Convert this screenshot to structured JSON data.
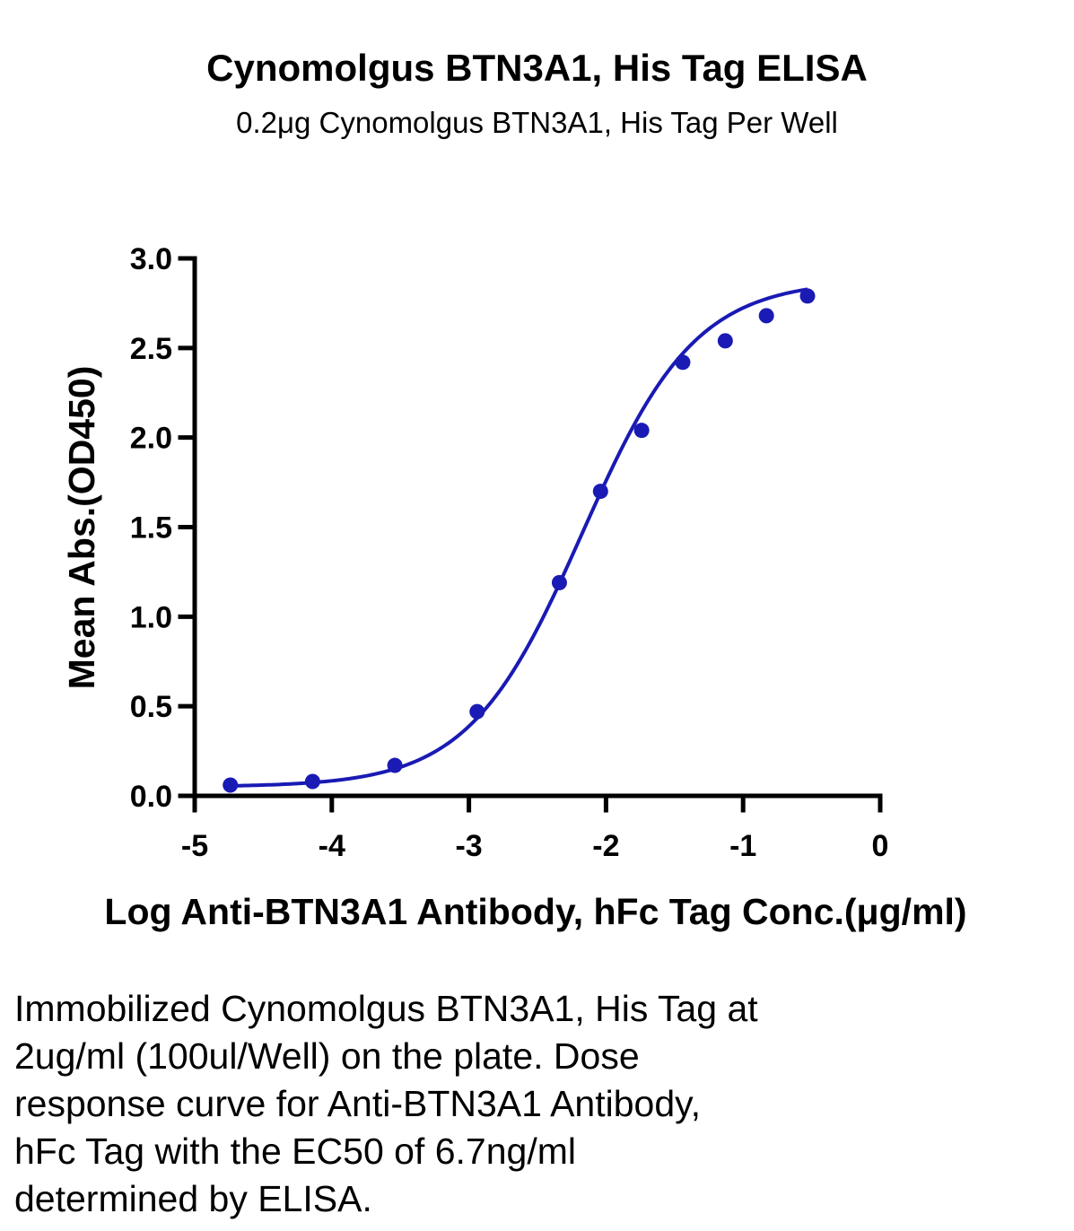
{
  "chart_data": {
    "type": "scatter",
    "title": "Cynomolgus BTN3A1, His Tag ELISA",
    "subtitle": "0.2μg Cynomolgus BTN3A1, His Tag Per Well",
    "xlabel": "Log Anti-BTN3A1 Antibody, hFc Tag Conc.(μg/ml)",
    "ylabel": "Mean Abs.(OD450)",
    "xlim": [
      -5,
      0
    ],
    "ylim": [
      0,
      3.0
    ],
    "x_ticks": [
      "-5",
      "-4",
      "-3",
      "-2",
      "-1",
      "0"
    ],
    "y_ticks": [
      "0.0",
      "0.5",
      "1.0",
      "1.5",
      "2.0",
      "2.5",
      "3.0"
    ],
    "grid": false,
    "series": [
      {
        "x": [
          -4.74,
          -4.14,
          -3.54,
          -2.94,
          -2.34,
          -2.04,
          -1.74,
          -1.44,
          -1.13,
          -0.83,
          -0.53
        ],
        "y": [
          0.06,
          0.08,
          0.17,
          0.47,
          1.19,
          1.7,
          2.04,
          2.42,
          2.54,
          2.68,
          2.79
        ],
        "fit": "four-parameter logistic",
        "color": "#1a1ab4"
      }
    ]
  },
  "caption": [
    "Immobilized Cynomolgus BTN3A1, His Tag at",
    "2ug/ml (100ul/Well) on the plate. Dose",
    "response curve for Anti-BTN3A1 Antibody,",
    "hFc Tag with the EC50 of 6.7ng/ml",
    "determined by ELISA."
  ]
}
